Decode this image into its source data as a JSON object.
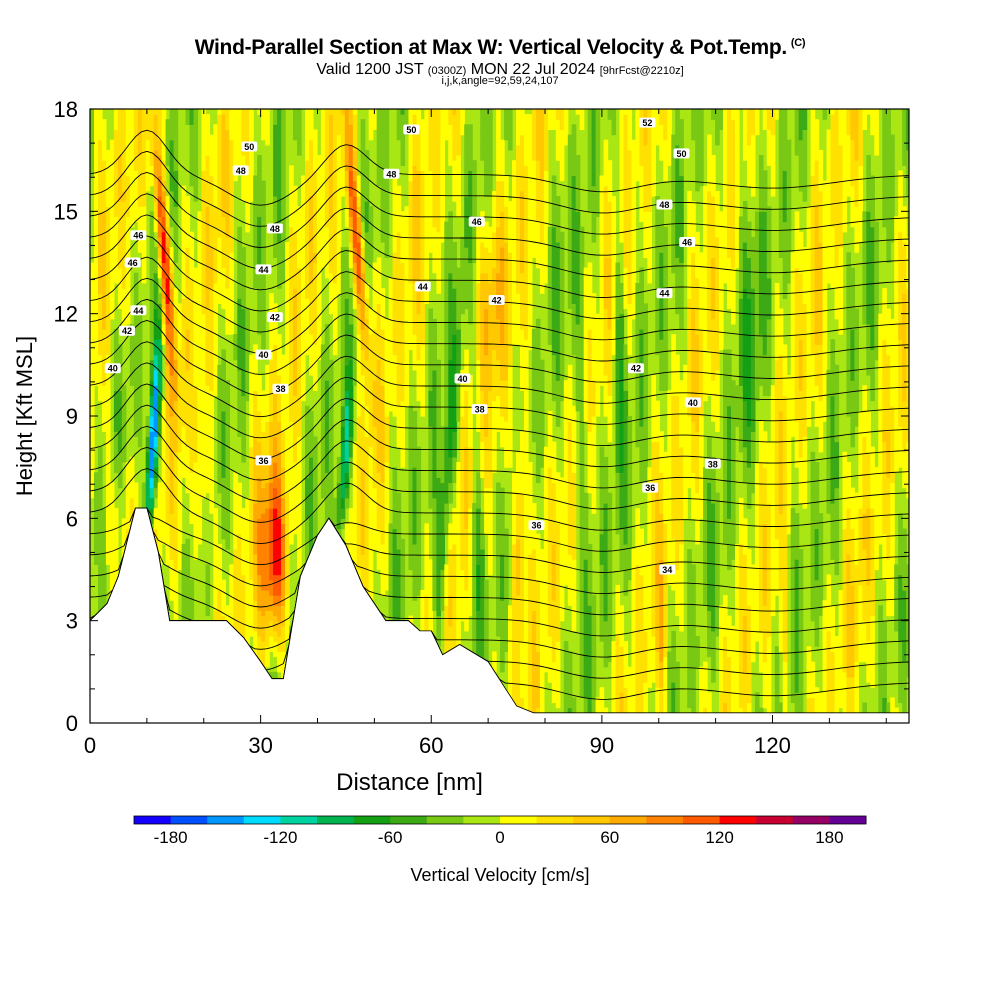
{
  "header": {
    "title": "Wind-Parallel Section at Max W: Vertical Velocity & Pot.Temp.",
    "copyright": "(C)",
    "subtitle_main": "Valid 1200 JST",
    "subtitle_utc": "(0300Z)",
    "subtitle_date": "MON 22 Jul 2024",
    "subtitle_fcst": "[9hrFcst@2210z]",
    "params": "i,j,k,angle=92,59,24,107"
  },
  "chart_data": {
    "type": "heatmap",
    "title": "Wind-Parallel Section at Max W: Vertical Velocity & Pot.Temp.",
    "xlabel": "Distance [nm]",
    "ylabel": "Height [Kft MSL]",
    "xlim": [
      0,
      144
    ],
    "ylim": [
      0,
      18
    ],
    "x_ticks": [
      0,
      30,
      60,
      90,
      120
    ],
    "y_ticks": [
      0,
      3,
      6,
      9,
      12,
      15,
      18
    ],
    "colorbar": {
      "label": "Vertical Velocity [cm/s]",
      "ticks": [
        -180,
        -120,
        -60,
        0,
        60,
        120,
        180
      ],
      "levels": [
        -200,
        -180,
        -160,
        -140,
        -120,
        -100,
        -80,
        -60,
        -40,
        -20,
        0,
        20,
        40,
        60,
        80,
        100,
        120,
        140,
        160,
        180,
        200
      ],
      "colors": [
        "#1400ff",
        "#0050ff",
        "#0096ff",
        "#00dcff",
        "#00d2a0",
        "#00b450",
        "#14a014",
        "#3caa14",
        "#78c814",
        "#aae614",
        "#ffff00",
        "#ffe100",
        "#ffc800",
        "#ffaa00",
        "#ff8200",
        "#ff5a00",
        "#ff0000",
        "#c80032",
        "#960064",
        "#640096"
      ]
    },
    "updrafts": [
      {
        "x": 12,
        "y": 14.5,
        "w_max": 150
      },
      {
        "x": 46,
        "y": 14,
        "w_max": 140
      },
      {
        "x": 32,
        "y": 4.8,
        "w_max": 130
      },
      {
        "x": 75,
        "y": 5.5,
        "w_max": 100
      },
      {
        "x": 65,
        "y": 12,
        "w_max": 40
      },
      {
        "x": 20,
        "y": 7,
        "w_max": 40
      }
    ],
    "downdrafts": [
      {
        "x": 11,
        "y": 8,
        "w_min": -180
      },
      {
        "x": 45,
        "y": 7,
        "w_min": -120
      },
      {
        "x": 60,
        "y": 5,
        "w_min": -80
      },
      {
        "x": 92,
        "y": 10,
        "w_min": -60
      }
    ],
    "terrain_height": [
      [
        0,
        3.0
      ],
      [
        3,
        3.5
      ],
      [
        5,
        4.3
      ],
      [
        8,
        6.3
      ],
      [
        10,
        6.3
      ],
      [
        12,
        5.0
      ],
      [
        14,
        3.0
      ],
      [
        16,
        3.0
      ],
      [
        20,
        3.0
      ],
      [
        24,
        3.0
      ],
      [
        27,
        2.5
      ],
      [
        30,
        1.8
      ],
      [
        32,
        1.3
      ],
      [
        34,
        1.3
      ],
      [
        37,
        4.3
      ],
      [
        40,
        5.5
      ],
      [
        42,
        6.0
      ],
      [
        45,
        5.2
      ],
      [
        48,
        4.0
      ],
      [
        52,
        3.0
      ],
      [
        56,
        3.0
      ],
      [
        58,
        2.7
      ],
      [
        60,
        2.7
      ],
      [
        62,
        2.0
      ],
      [
        65,
        2.3
      ],
      [
        70,
        1.8
      ],
      [
        75,
        0.5
      ],
      [
        78,
        0.3
      ],
      [
        85,
        0.3
      ],
      [
        90,
        0.3
      ],
      [
        100,
        0.3
      ],
      [
        130,
        0.3
      ],
      [
        144,
        0.3
      ]
    ],
    "theta_labels": [
      {
        "text": "40",
        "x": 4,
        "y": 10.4
      },
      {
        "text": "42",
        "x": 6.5,
        "y": 11.5
      },
      {
        "text": "44",
        "x": 8.5,
        "y": 12.1
      },
      {
        "text": "46",
        "x": 7.5,
        "y": 13.5
      },
      {
        "text": "46",
        "x": 8.5,
        "y": 14.3
      },
      {
        "text": "48",
        "x": 26.5,
        "y": 16.2
      },
      {
        "text": "50",
        "x": 28,
        "y": 16.9
      },
      {
        "text": "48",
        "x": 32.5,
        "y": 14.5
      },
      {
        "text": "44",
        "x": 30.5,
        "y": 13.3
      },
      {
        "text": "42",
        "x": 32.5,
        "y": 11.9
      },
      {
        "text": "40",
        "x": 30.5,
        "y": 10.8
      },
      {
        "text": "38",
        "x": 33.5,
        "y": 9.8
      },
      {
        "text": "36",
        "x": 30.5,
        "y": 7.7
      },
      {
        "text": "50",
        "x": 56.5,
        "y": 17.4
      },
      {
        "text": "48",
        "x": 53,
        "y": 16.1
      },
      {
        "text": "46",
        "x": 68,
        "y": 14.7
      },
      {
        "text": "44",
        "x": 58.5,
        "y": 12.8
      },
      {
        "text": "42",
        "x": 71.5,
        "y": 12.4
      },
      {
        "text": "40",
        "x": 65.5,
        "y": 10.1
      },
      {
        "text": "38",
        "x": 68.5,
        "y": 9.2
      },
      {
        "text": "36",
        "x": 78.5,
        "y": 5.8
      },
      {
        "text": "52",
        "x": 98,
        "y": 17.6
      },
      {
        "text": "50",
        "x": 104,
        "y": 16.7
      },
      {
        "text": "48",
        "x": 101,
        "y": 15.2
      },
      {
        "text": "46",
        "x": 105,
        "y": 14.1
      },
      {
        "text": "44",
        "x": 101,
        "y": 12.6
      },
      {
        "text": "42",
        "x": 96,
        "y": 10.4
      },
      {
        "text": "40",
        "x": 106,
        "y": 9.4
      },
      {
        "text": "38",
        "x": 109.5,
        "y": 7.6
      },
      {
        "text": "36",
        "x": 98.5,
        "y": 6.9
      },
      {
        "text": "34",
        "x": 101.5,
        "y": 4.5
      }
    ]
  }
}
